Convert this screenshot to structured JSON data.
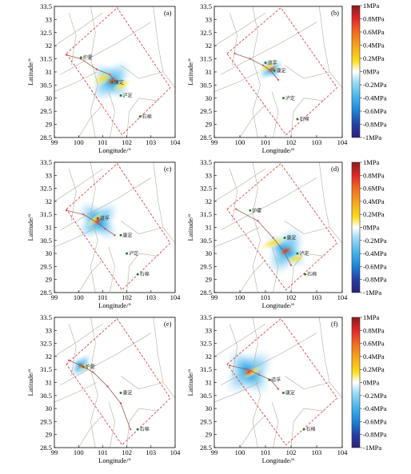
{
  "x_ticks": [
    "99",
    "100",
    "101",
    "102",
    "103",
    "104"
  ],
  "y_ticks": [
    "33.5",
    "33",
    "32.5",
    "32",
    "31.5",
    "31",
    "30.5",
    "30",
    "29.5",
    "29",
    "28.5"
  ],
  "xlabel": "Longitude/°",
  "ylabel": "Latitude/°",
  "colorbar_labels": [
    "1MPa",
    "0.8MPa",
    "0.6MPa",
    "0.4MPa",
    "0.2MPa",
    "0MPa",
    "-0.2MPa",
    "-0.4MPa",
    "-0.6MPa",
    "-0.8MPa",
    "-1MPa"
  ],
  "colorbar_colors": [
    "#8b1a1a",
    "#e3262a",
    "#f26a1e",
    "#f7a21b",
    "#fcdc1c",
    "#ffffff",
    "#9fdcf5",
    "#3fb1ec",
    "#1b83d6",
    "#243fa8",
    "#2e1f7a"
  ],
  "panels": [
    {
      "label": "(a)",
      "sites": [
        "炉霍",
        "康定",
        "泸定",
        "石棉"
      ]
    },
    {
      "label": "(b)",
      "sites": [
        "道孚",
        "康定",
        "泸定",
        "石棉"
      ]
    },
    {
      "label": "(c)",
      "sites": [
        "道孚",
        "康定",
        "泸定",
        "石棉"
      ]
    },
    {
      "label": "(d)",
      "sites": [
        "炉霍",
        "康定",
        "泸定",
        "石棉"
      ]
    },
    {
      "label": "(e)",
      "sites": [
        "炉霍",
        "康定",
        "石棉"
      ]
    },
    {
      "label": "(f)",
      "sites": [
        "道孚",
        "康定",
        "石棉"
      ]
    }
  ]
}
